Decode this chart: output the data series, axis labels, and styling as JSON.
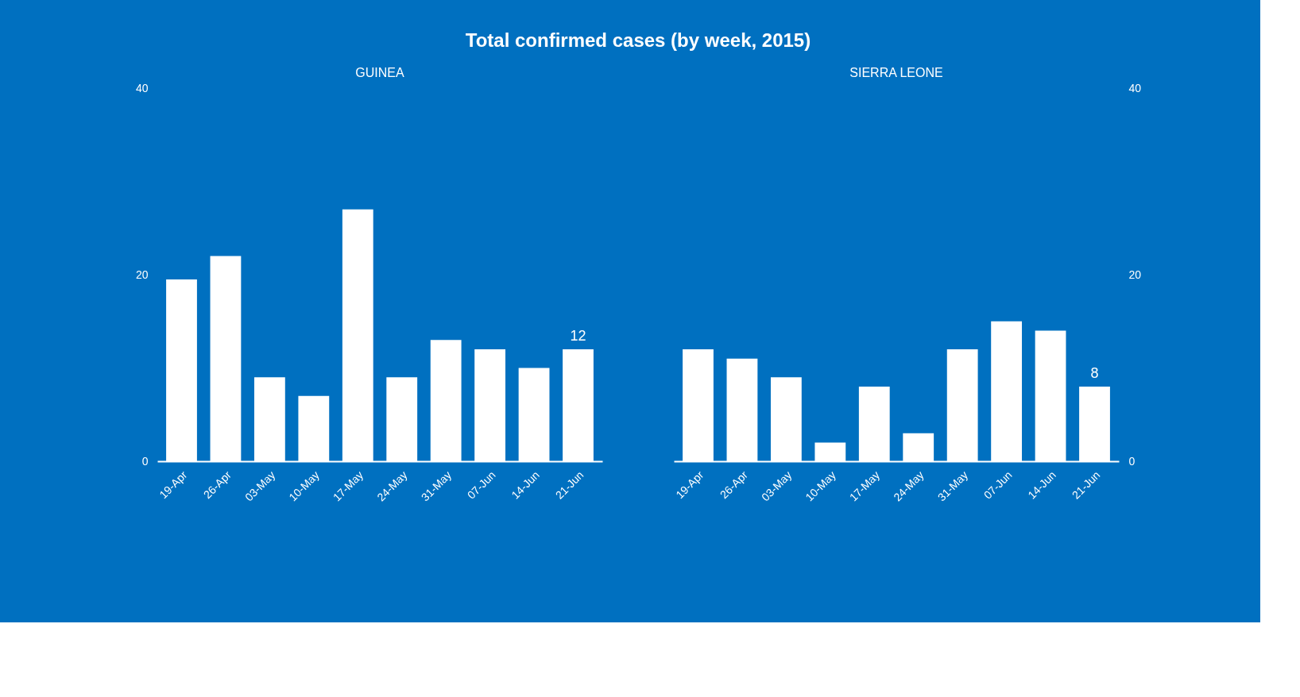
{
  "chart_data": [
    {
      "type": "bar",
      "title": "Total confirmed cases (by week, 2015)",
      "subtitle": "GUINEA",
      "categories": [
        "19-Apr",
        "26-Apr",
        "03-May",
        "10-May",
        "17-May",
        "24-May",
        "31-May",
        "07-Jun",
        "14-Jun",
        "21-Jun"
      ],
      "values": [
        19.5,
        22,
        9,
        7,
        27,
        9,
        13,
        12,
        10,
        12
      ],
      "color": "#ffffff",
      "value_labels": [
        null,
        null,
        null,
        null,
        null,
        null,
        null,
        null,
        null,
        "12"
      ],
      "ylim": [
        0,
        40
      ],
      "yticks": [
        0,
        20,
        40
      ],
      "grid": false
    },
    {
      "type": "bar",
      "subtitle": "SIERRA LEONE",
      "categories": [
        "19-Apr",
        "26-Apr",
        "03-May",
        "10-May",
        "17-May",
        "24-May",
        "31-May",
        "07-Jun",
        "14-Jun",
        "21-Jun"
      ],
      "values": [
        12,
        11,
        9,
        2,
        8,
        3,
        12,
        15,
        14,
        8
      ],
      "color": "#ffffff",
      "value_labels": [
        null,
        null,
        null,
        null,
        null,
        null,
        null,
        null,
        null,
        "8"
      ],
      "ylim": [
        0,
        40
      ],
      "yticks": [
        0,
        20,
        40
      ],
      "grid": false
    }
  ]
}
